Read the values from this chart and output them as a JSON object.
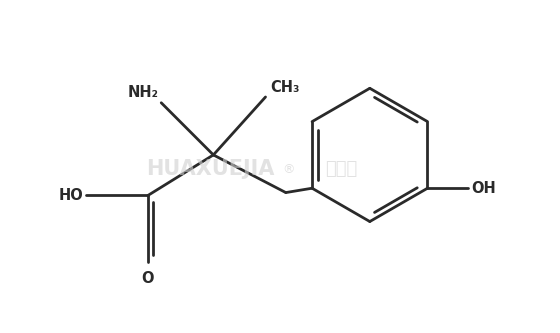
{
  "bg_color": "#ffffff",
  "bond_color": "#2a2a2a",
  "watermark_color": "#d0d0d0",
  "line_width": 2.0,
  "xlim": [
    0.5,
    9.5
  ],
  "ylim": [
    0.5,
    6.2
  ],
  "figsize": [
    5.6,
    3.33
  ],
  "dpi": 100
}
